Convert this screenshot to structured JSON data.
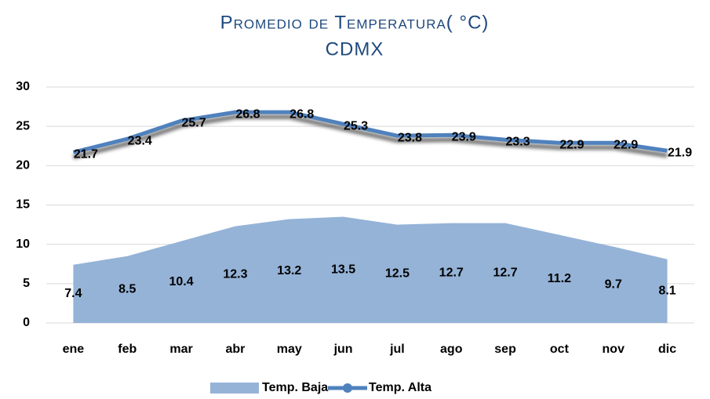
{
  "chart_data": {
    "type": "area_line",
    "title": "Promedio de Temperatura( °C)",
    "subtitle": "CDMX",
    "categories": [
      "ene",
      "feb",
      "mar",
      "abr",
      "may",
      "jun",
      "jul",
      "ago",
      "sep",
      "oct",
      "nov",
      "dic"
    ],
    "series": [
      {
        "name": "Temp. Baja",
        "type": "area",
        "color": "#95b3d7",
        "values": [
          7.4,
          8.5,
          10.4,
          12.3,
          13.2,
          13.5,
          12.5,
          12.7,
          12.7,
          11.2,
          9.7,
          8.1
        ]
      },
      {
        "name": "Temp. Alta",
        "type": "line",
        "color": "#4f81bd",
        "values": [
          21.7,
          23.4,
          25.7,
          26.8,
          26.8,
          25.3,
          23.8,
          23.9,
          23.3,
          22.9,
          22.9,
          21.9
        ]
      }
    ],
    "ylim": [
      0,
      30
    ],
    "yticks": [
      0,
      5,
      10,
      15,
      20,
      25,
      30
    ],
    "grid": true,
    "legend": "bottom"
  }
}
